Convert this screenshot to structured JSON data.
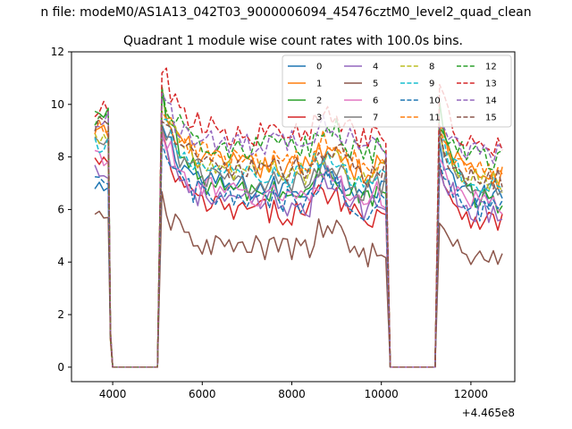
{
  "figure": {
    "suptitle": "n file: modeM0/AS1A13_042T03_9000006094_45476cztM0_level2_quad_clean",
    "x_offset_label": "+4.465e8"
  },
  "chart_data": {
    "type": "line",
    "title": "Quadrant 1 module wise count rates with 100.0s bins.",
    "xlabel": "",
    "ylabel": "",
    "x_offset": 446500000,
    "xlim": [
      3080,
      12980
    ],
    "ylim": [
      -0.55,
      12.0
    ],
    "xticks": [
      4000,
      6000,
      8000,
      10000,
      12000
    ],
    "yticks": [
      0,
      2,
      4,
      6,
      8,
      10,
      12
    ],
    "xtick_labels": [
      "4000",
      "6000",
      "8000",
      "10000",
      "12000"
    ],
    "ytick_labels": [
      "0",
      "2",
      "4",
      "6",
      "8",
      "10",
      "12"
    ],
    "grid": false,
    "legend_placement": "top-right",
    "segments": [
      {
        "t_start": 3600,
        "t_end": 3900
      },
      {
        "t_start": 4000,
        "t_end": 5000
      },
      {
        "t_start": 5100,
        "t_end": 10100
      },
      {
        "t_start": 10200,
        "t_end": 11200
      },
      {
        "t_start": 11300,
        "t_end": 12700
      }
    ],
    "series": [
      {
        "name": "0",
        "color": "#1f77b4",
        "dash": "solid",
        "level": 6.8,
        "pre": 6.7,
        "peak": 9.4
      },
      {
        "name": "1",
        "color": "#ff7f0e",
        "dash": "solid",
        "level": 7.6,
        "pre": 8.9,
        "peak": 10.3
      },
      {
        "name": "2",
        "color": "#2ca02c",
        "dash": "solid",
        "level": 6.6,
        "pre": 9.6,
        "peak": 10.7
      },
      {
        "name": "3",
        "color": "#d62728",
        "dash": "solid",
        "level": 5.9,
        "pre": 7.8,
        "peak": 8.6
      },
      {
        "name": "4",
        "color": "#9467bd",
        "dash": "solid",
        "level": 6.2,
        "pre": 7.5,
        "peak": 8.8
      },
      {
        "name": "5",
        "color": "#8c564b",
        "dash": "solid",
        "level": 4.5,
        "pre": 5.6,
        "peak": 6.2
      },
      {
        "name": "6",
        "color": "#e377c2",
        "dash": "solid",
        "level": 6.5,
        "pre": 8.0,
        "peak": 9.0
      },
      {
        "name": "7",
        "color": "#7f7f7f",
        "dash": "solid",
        "level": 7.0,
        "pre": 8.5,
        "peak": 9.6
      },
      {
        "name": "8",
        "color": "#bcbd22",
        "dash": "dashed",
        "level": 7.4,
        "pre": 8.6,
        "peak": 9.9
      },
      {
        "name": "9",
        "color": "#17becf",
        "dash": "dashed",
        "level": 7.2,
        "pre": 8.4,
        "peak": 9.8
      },
      {
        "name": "10",
        "color": "#1f77b4",
        "dash": "dashed",
        "level": 6.3,
        "pre": 6.9,
        "peak": 8.4
      },
      {
        "name": "11",
        "color": "#ff7f0e",
        "dash": "dashed",
        "level": 7.8,
        "pre": 9.2,
        "peak": 10.1
      },
      {
        "name": "12",
        "color": "#2ca02c",
        "dash": "dashed",
        "level": 8.3,
        "pre": 9.5,
        "peak": 10.5
      },
      {
        "name": "13",
        "color": "#d62728",
        "dash": "dashed",
        "level": 8.8,
        "pre": 9.8,
        "peak": 11.5
      },
      {
        "name": "14",
        "color": "#9467bd",
        "dash": "dashed",
        "level": 8.5,
        "pre": 9.4,
        "peak": 10.2
      },
      {
        "name": "15",
        "color": "#8c564b",
        "dash": "dashed",
        "level": 7.5,
        "pre": 9.2,
        "peak": 9.6
      }
    ]
  }
}
